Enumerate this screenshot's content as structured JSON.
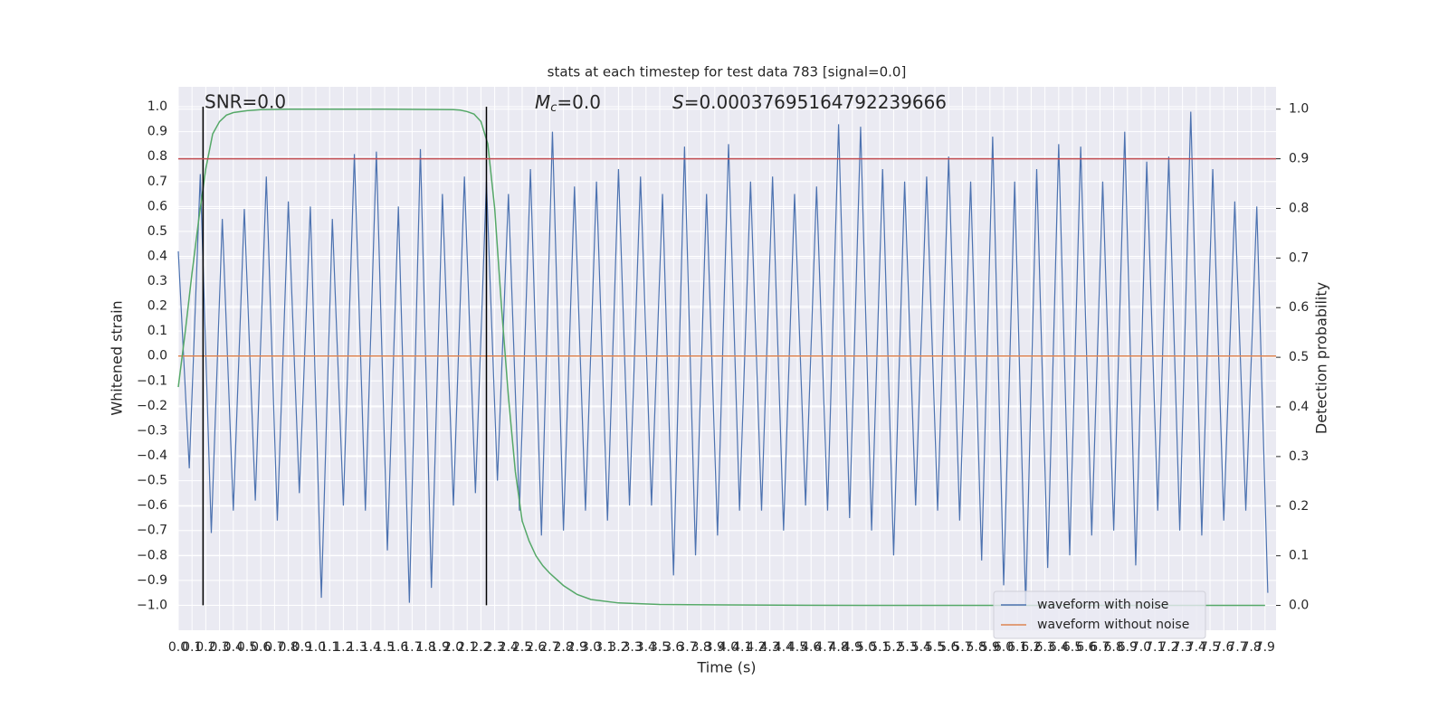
{
  "chart_data": {
    "type": "line",
    "title": "stats at each timestep for test data 783 [signal=0.0]",
    "x_label": "Time (s)",
    "y_label": "Whitened strain",
    "y2_label": "Detection probability",
    "annotations": [
      {
        "text": "SNR=0.0"
      },
      {
        "symbol": "M",
        "subscript": "c",
        "text": "=0.0"
      },
      {
        "symbol": "S",
        "text": "=0.00037695164792239666"
      }
    ],
    "xlim": [
      0,
      7.98
    ],
    "ylim": [
      -1.1,
      1.08
    ],
    "y2lim": [
      -0.05,
      1.045
    ],
    "grid": true,
    "legend": "lower right",
    "xticks": [
      {
        "value": 0,
        "label": "0.0"
      },
      0.1,
      0.2,
      0.3,
      0.4,
      0.5,
      0.6,
      0.7,
      0.8,
      0.9,
      {
        "value": 1,
        "label": "1.0"
      },
      1.1,
      1.2,
      1.3,
      1.4,
      1.5,
      1.6,
      1.7,
      1.8,
      1.9,
      {
        "value": 2,
        "label": "2.0"
      },
      2.1,
      2.2,
      2.3,
      2.4,
      2.5,
      2.6,
      2.7,
      2.8,
      2.9,
      {
        "value": 3,
        "label": "3.0"
      },
      3.1,
      3.2,
      3.3,
      3.4,
      3.5,
      3.6,
      3.7,
      3.8,
      3.9,
      {
        "value": 4,
        "label": "4.0"
      },
      4.1,
      4.2,
      4.3,
      4.4,
      4.5,
      4.6,
      4.7,
      4.8,
      4.9,
      {
        "value": 5,
        "label": "5.0"
      },
      5.1,
      5.2,
      5.3,
      5.4,
      5.5,
      5.6,
      5.7,
      5.8,
      5.9,
      {
        "value": 6,
        "label": "6.0"
      },
      6.1,
      6.2,
      6.3,
      6.4,
      6.5,
      6.6,
      6.7,
      6.8,
      6.9,
      {
        "value": 7,
        "label": "7.0"
      },
      7.1,
      7.2,
      7.3,
      7.4,
      7.5,
      7.6,
      7.7,
      7.8,
      7.9
    ],
    "yticks": [
      {
        "value": -1,
        "label": "−1.0"
      },
      {
        "value": -0.9,
        "label": "−0.9"
      },
      {
        "value": -0.8,
        "label": "−0.8"
      },
      {
        "value": -0.7,
        "label": "−0.7"
      },
      {
        "value": -0.6,
        "label": "−0.6"
      },
      {
        "value": -0.5,
        "label": "−0.5"
      },
      {
        "value": -0.4,
        "label": "−0.4"
      },
      {
        "value": -0.3,
        "label": "−0.3"
      },
      {
        "value": -0.2,
        "label": "−0.2"
      },
      {
        "value": -0.1,
        "label": "−0.1"
      },
      {
        "value": 0,
        "label": "0.0"
      },
      0.1,
      0.2,
      0.3,
      0.4,
      0.5,
      0.6,
      0.7,
      0.8,
      0.9,
      {
        "value": 1,
        "label": "1.0"
      }
    ],
    "y2ticks": [
      {
        "value": 0,
        "label": "0.0"
      },
      0.1,
      0.2,
      0.3,
      0.4,
      0.5,
      0.6,
      0.7,
      0.8,
      0.9,
      {
        "value": 1,
        "label": "1.0"
      }
    ],
    "series": [
      {
        "name": "waveform with noise",
        "color": "#4c72b0",
        "x": [
          0,
          0.08,
          0.16,
          0.24,
          0.32,
          0.4,
          0.48,
          0.56,
          0.64,
          0.72,
          0.8,
          0.88,
          0.96,
          1.04,
          1.12,
          1.2,
          1.28,
          1.36,
          1.44,
          1.52,
          1.6,
          1.68,
          1.76,
          1.84,
          1.92,
          2,
          2.08,
          2.16,
          2.24,
          2.32,
          2.4,
          2.48,
          2.56,
          2.64,
          2.72,
          2.8,
          2.88,
          2.96,
          3.04,
          3.12,
          3.2,
          3.28,
          3.36,
          3.44,
          3.52,
          3.6,
          3.68,
          3.76,
          3.84,
          3.92,
          4,
          4.08,
          4.16,
          4.24,
          4.32,
          4.4,
          4.48,
          4.56,
          4.64,
          4.72,
          4.8,
          4.88,
          4.96,
          5.04,
          5.12,
          5.2,
          5.28,
          5.36,
          5.44,
          5.52,
          5.6,
          5.68,
          5.76,
          5.84,
          5.92,
          6,
          6.08,
          6.16,
          6.24,
          6.32,
          6.4,
          6.48,
          6.56,
          6.64,
          6.72,
          6.8,
          6.88,
          6.96,
          7.04,
          7.12,
          7.2,
          7.28,
          7.36,
          7.44,
          7.52,
          7.6,
          7.68,
          7.76,
          7.84,
          7.92
        ],
        "values": [
          0.42,
          -0.45,
          0.73,
          -0.71,
          0.55,
          -0.62,
          0.59,
          -0.58,
          0.72,
          -0.66,
          0.62,
          -0.55,
          0.6,
          -0.97,
          0.55,
          -0.6,
          0.81,
          -0.62,
          0.82,
          -0.78,
          0.6,
          -0.99,
          0.83,
          -0.93,
          0.65,
          -0.6,
          0.72,
          -0.55,
          0.7,
          -0.5,
          0.65,
          -0.62,
          0.75,
          -0.72,
          0.9,
          -0.7,
          0.68,
          -0.62,
          0.7,
          -0.66,
          0.75,
          -0.6,
          0.72,
          -0.6,
          0.65,
          -0.88,
          0.84,
          -0.8,
          0.65,
          -0.72,
          0.85,
          -0.62,
          0.7,
          -0.62,
          0.72,
          -0.7,
          0.65,
          -0.6,
          0.68,
          -0.62,
          0.93,
          -0.65,
          0.92,
          -0.7,
          0.75,
          -0.8,
          0.7,
          -0.6,
          0.72,
          -0.62,
          0.8,
          -0.66,
          0.7,
          -0.82,
          0.88,
          -0.92,
          0.7,
          -1.0,
          0.75,
          -0.85,
          0.85,
          -0.8,
          0.84,
          -0.72,
          0.7,
          -0.7,
          0.9,
          -0.84,
          0.78,
          -0.62,
          0.8,
          -0.7,
          0.98,
          -0.72,
          0.75,
          -0.66,
          0.62,
          -0.62,
          0.6,
          -0.95
        ]
      },
      {
        "name": "waveform without noise",
        "color": "#dd8452",
        "x": [
          0,
          7.98
        ],
        "values": [
          0,
          0
        ]
      },
      {
        "color": "#55a868",
        "axis": "y2",
        "x": [
          0,
          0.05,
          0.1,
          0.15,
          0.2,
          0.25,
          0.3,
          0.35,
          0.4,
          0.5,
          0.6,
          0.8,
          1,
          1.5,
          2,
          2.05,
          2.1,
          2.15,
          2.2,
          2.25,
          2.3,
          2.35,
          2.4,
          2.45,
          2.5,
          2.55,
          2.6,
          2.65,
          2.7,
          2.8,
          2.9,
          3,
          3.2,
          3.5,
          4,
          5,
          6,
          7,
          7.9
        ],
        "values": [
          0.44,
          0.55,
          0.67,
          0.78,
          0.88,
          0.95,
          0.975,
          0.988,
          0.993,
          0.997,
          0.999,
          1.0,
          1.0,
          1.0,
          0.999,
          0.998,
          0.995,
          0.99,
          0.975,
          0.93,
          0.8,
          0.6,
          0.42,
          0.27,
          0.17,
          0.13,
          0.1,
          0.08,
          0.065,
          0.04,
          0.022,
          0.012,
          0.005,
          0.002,
          0.001,
          0,
          0,
          0,
          0
        ]
      }
    ],
    "hlines": [
      {
        "value": 0.9,
        "axis": "y2",
        "color": "#c44e52"
      }
    ],
    "vlines": {
      "x": [
        0.18,
        2.24
      ],
      "ymin": -1,
      "ymax": 1,
      "color": "#000000"
    }
  }
}
